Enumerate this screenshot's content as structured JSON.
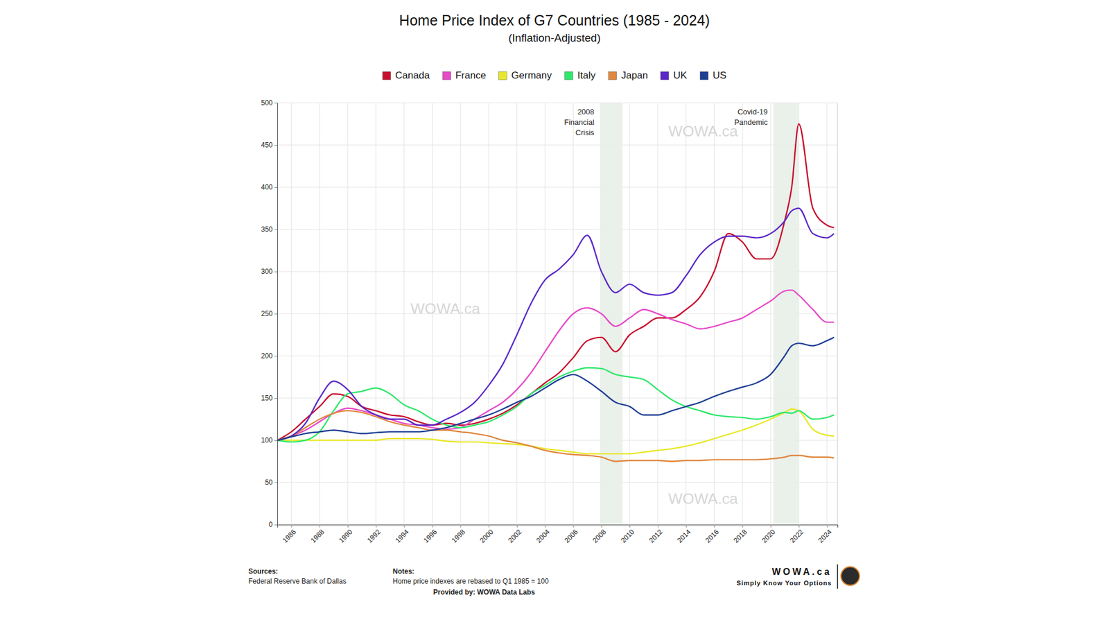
{
  "chart_data": {
    "type": "line",
    "title": "Home Price Index of G7 Countries (1985 - 2024)",
    "subtitle": "(Inflation-Adjusted)",
    "x": [
      1985,
      1986,
      1987,
      1988,
      1989,
      1990,
      1991,
      1992,
      1993,
      1994,
      1995,
      1996,
      1997,
      1998,
      1999,
      2000,
      2001,
      2002,
      2003,
      2004,
      2005,
      2006,
      2007,
      2008,
      2009,
      2010,
      2011,
      2012,
      2013,
      2014,
      2015,
      2016,
      2017,
      2018,
      2019,
      2020,
      2021,
      2021.5,
      2022,
      2023,
      2024,
      2024.5
    ],
    "xlim": [
      1985,
      2024.75
    ],
    "xticks": [
      1986,
      1988,
      1990,
      1992,
      1994,
      1996,
      1998,
      2000,
      2002,
      2004,
      2006,
      2008,
      2010,
      2012,
      2014,
      2016,
      2018,
      2020,
      2022,
      2024
    ],
    "ylim": [
      0,
      500
    ],
    "yticks": [
      0,
      50,
      100,
      150,
      200,
      250,
      300,
      350,
      400,
      450,
      500
    ],
    "grid": true,
    "legend": "top",
    "series": [
      {
        "name": "Canada",
        "color": "#c8102e",
        "values": [
          100,
          110,
          125,
          140,
          155,
          152,
          140,
          135,
          130,
          128,
          122,
          118,
          120,
          118,
          120,
          125,
          132,
          142,
          155,
          168,
          180,
          198,
          218,
          222,
          205,
          225,
          235,
          245,
          245,
          255,
          270,
          300,
          345,
          335,
          315,
          315,
          360,
          400,
          475,
          375,
          355,
          352
        ]
      },
      {
        "name": "France",
        "color": "#e64ac8",
        "values": [
          100,
          105,
          112,
          122,
          132,
          138,
          135,
          130,
          125,
          120,
          118,
          115,
          113,
          115,
          125,
          135,
          145,
          160,
          180,
          205,
          230,
          250,
          257,
          250,
          235,
          245,
          255,
          250,
          243,
          238,
          232,
          235,
          240,
          245,
          255,
          265,
          277,
          278,
          272,
          255,
          240,
          240
        ]
      },
      {
        "name": "Germany",
        "color": "#e8e82a",
        "values": [
          100,
          100,
          100,
          100,
          100,
          100,
          100,
          100,
          102,
          102,
          102,
          101,
          99,
          98,
          98,
          97,
          96,
          95,
          93,
          90,
          88,
          86,
          84,
          84,
          84,
          84,
          86,
          88,
          90,
          93,
          97,
          102,
          107,
          112,
          118,
          125,
          133,
          137,
          135,
          113,
          106,
          105
        ]
      },
      {
        "name": "Italy",
        "color": "#2ee86a",
        "values": [
          100,
          98,
          100,
          110,
          135,
          155,
          158,
          162,
          155,
          142,
          135,
          125,
          118,
          115,
          118,
          122,
          130,
          140,
          155,
          165,
          175,
          182,
          186,
          185,
          178,
          175,
          172,
          160,
          148,
          140,
          135,
          130,
          128,
          127,
          125,
          128,
          133,
          132,
          135,
          125,
          127,
          130
        ]
      },
      {
        "name": "Japan",
        "color": "#e0873e",
        "values": [
          100,
          105,
          115,
          125,
          132,
          135,
          133,
          128,
          122,
          118,
          115,
          112,
          112,
          110,
          108,
          105,
          100,
          97,
          93,
          88,
          85,
          83,
          82,
          80,
          75,
          76,
          76,
          76,
          75,
          76,
          76,
          77,
          77,
          77,
          77,
          78,
          80,
          82,
          82,
          80,
          80,
          79
        ]
      },
      {
        "name": "UK",
        "color": "#5a28c8",
        "values": [
          100,
          105,
          120,
          150,
          170,
          160,
          140,
          130,
          125,
          125,
          118,
          118,
          125,
          133,
          145,
          165,
          190,
          225,
          262,
          290,
          303,
          320,
          343,
          300,
          275,
          285,
          275,
          272,
          275,
          295,
          320,
          335,
          342,
          342,
          340,
          345,
          360,
          372,
          375,
          345,
          340,
          345
        ]
      },
      {
        "name": "US",
        "color": "#1e3f94",
        "values": [
          100,
          104,
          108,
          110,
          112,
          110,
          108,
          109,
          110,
          110,
          110,
          112,
          115,
          120,
          125,
          130,
          137,
          145,
          152,
          162,
          172,
          178,
          170,
          158,
          145,
          140,
          130,
          130,
          135,
          140,
          145,
          152,
          158,
          163,
          168,
          178,
          200,
          212,
          215,
          212,
          218,
          222
        ]
      }
    ],
    "bands": [
      {
        "start": 2007.9,
        "end": 2009.5,
        "label": "2008 Financial Crisis"
      },
      {
        "start": 2020.2,
        "end": 2022.0,
        "label": "Covid-19 Pandemic"
      }
    ],
    "watermark": "WOWA.ca",
    "footer": {
      "sources_label": "Sources:",
      "sources": "Federal Reserve Bank of Dallas",
      "notes_label": "Notes:",
      "notes": "Home price indexes are rebased to Q1 1985 = 100",
      "provided_by": "Provided by: WOWA Data Labs",
      "brand": "WOWA.ca",
      "tagline": "Simply Know Your Options"
    }
  }
}
